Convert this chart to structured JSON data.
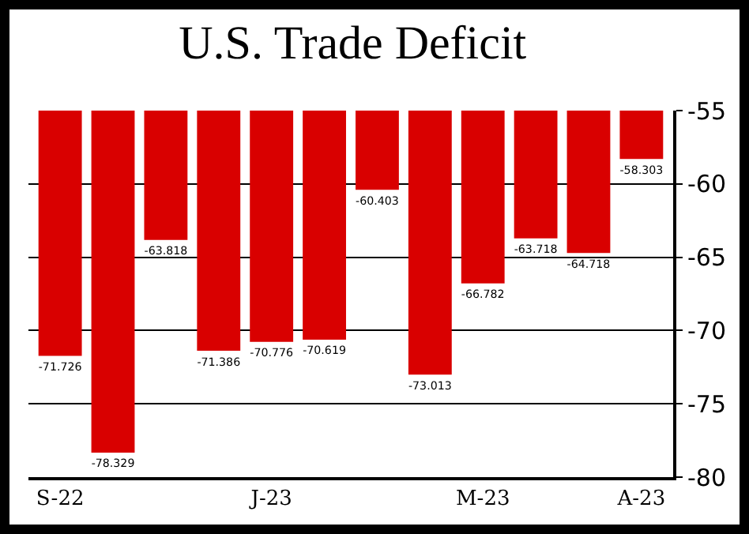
{
  "chart_data": {
    "type": "bar",
    "title": "U.S. Trade Deficit",
    "categories": [
      "S-22",
      null,
      null,
      null,
      "J-23",
      null,
      null,
      null,
      "M-23",
      null,
      null,
      "A-23"
    ],
    "values": [
      -71.726,
      -78.329,
      -63.818,
      -71.386,
      -70.776,
      -70.619,
      -60.403,
      -73.013,
      -66.782,
      -63.718,
      -64.718,
      -58.303
    ],
    "color": "#d90000",
    "ylim": [
      -80,
      -55
    ],
    "yticks": [
      -55,
      -60,
      -65,
      -70,
      -75,
      -80
    ],
    "grid": "y",
    "data_labels": true
  }
}
